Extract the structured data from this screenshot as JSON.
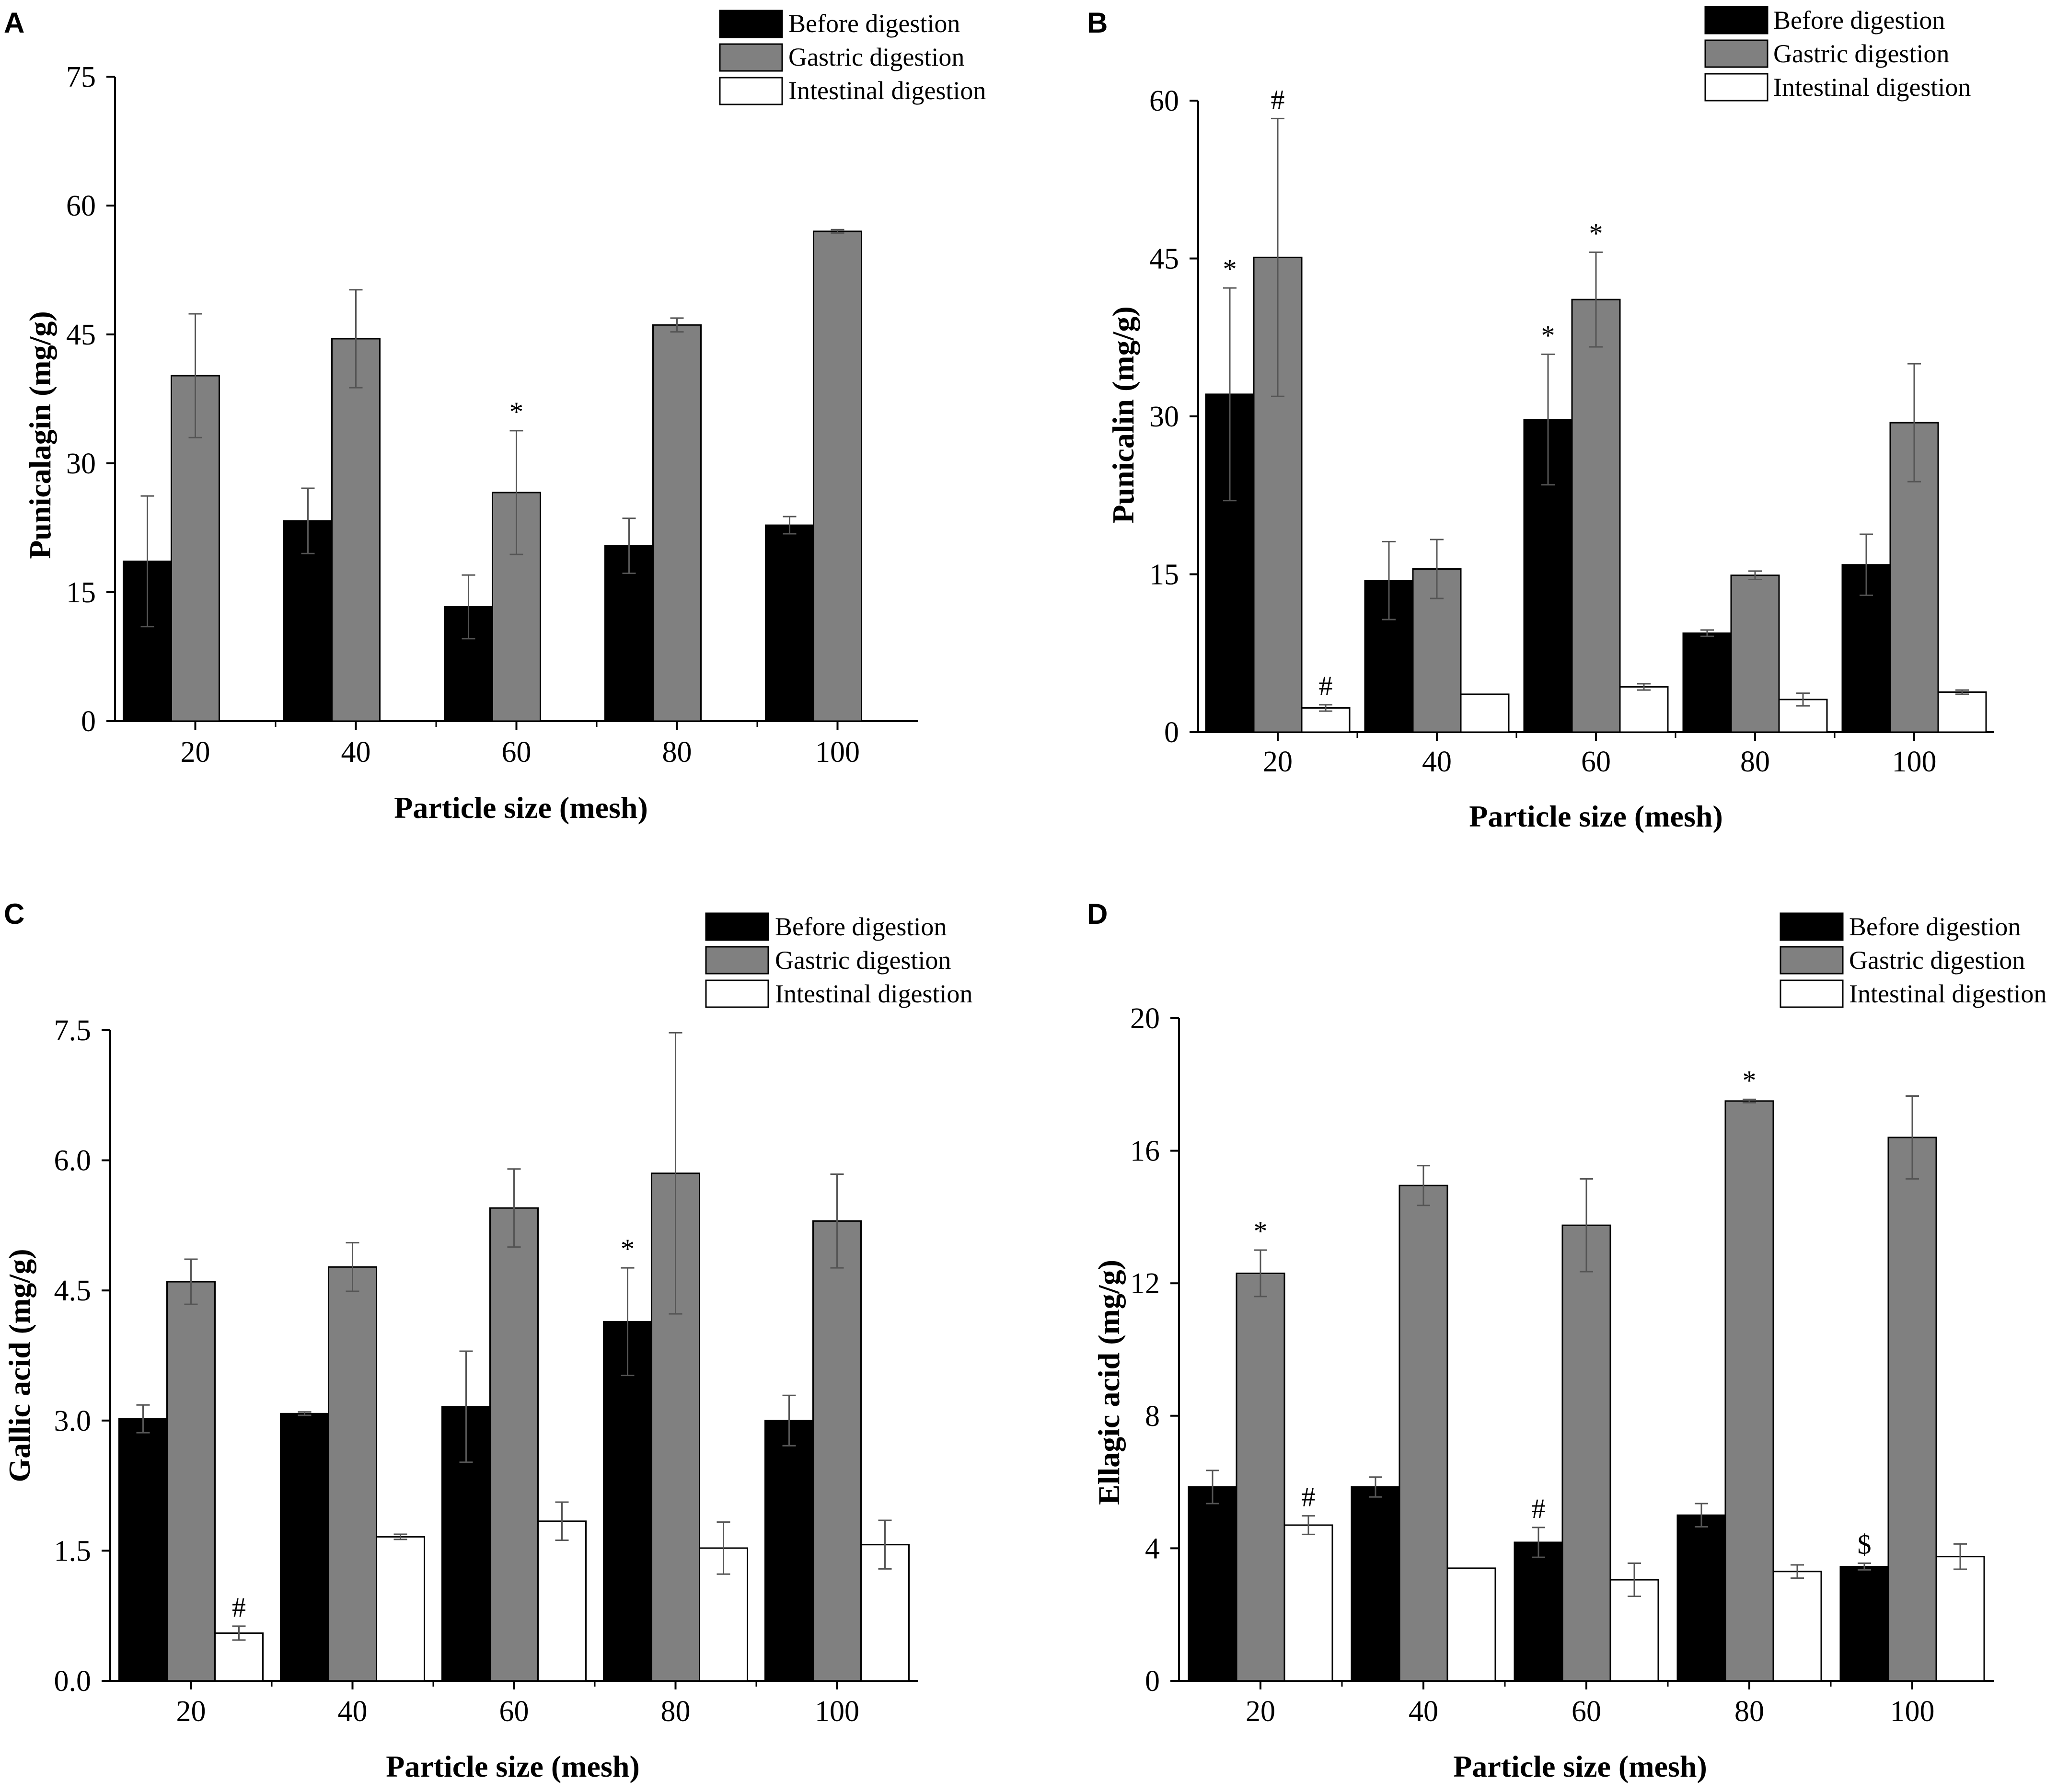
{
  "chart_data": [
    {
      "panel": "A",
      "type": "bar",
      "xlabel": "Particle size (mesh)",
      "ylabel": "Punicalagin (mg/g)",
      "ylim": [
        0,
        75
      ],
      "yticks": [
        0,
        15,
        30,
        45,
        60,
        75
      ],
      "ytick_labels": [
        "0",
        "15",
        "30",
        "45",
        "60",
        "75"
      ],
      "categories": [
        "20",
        "40",
        "60",
        "80",
        "100"
      ],
      "legend": [
        "Before digestion",
        "Gastric digestion",
        "Intestinal digestion"
      ],
      "legend_position": "top-right",
      "series": [
        {
          "name": "Before digestion",
          "color": "#000000",
          "values": [
            18.6,
            23.3,
            13.3,
            20.4,
            22.8
          ],
          "errors": [
            7.6,
            3.8,
            3.7,
            3.2,
            1.0
          ]
        },
        {
          "name": "Gastric digestion",
          "color": "#808080",
          "values": [
            40.2,
            44.5,
            26.6,
            46.1,
            57.0
          ],
          "errors": [
            7.2,
            5.7,
            7.2,
            0.8,
            0.2
          ]
        }
      ],
      "annotations": [
        {
          "text": "*",
          "series": 1,
          "category": 2
        }
      ]
    },
    {
      "panel": "B",
      "type": "bar",
      "xlabel": "Particle size (mesh)",
      "ylabel": "Punicalin (mg/g)",
      "ylim": [
        0,
        60
      ],
      "yticks": [
        0,
        15,
        30,
        45,
        60
      ],
      "ytick_labels": [
        "0",
        "15",
        "30",
        "45",
        "60"
      ],
      "categories": [
        "20",
        "40",
        "60",
        "80",
        "100"
      ],
      "legend": [
        "Before digestion",
        "Gastric digestion",
        "Intestinal digestion"
      ],
      "legend_position": "top-right",
      "series": [
        {
          "name": "Before digestion",
          "color": "#000000",
          "values": [
            32.1,
            14.4,
            29.7,
            9.4,
            15.9
          ],
          "errors": [
            10.1,
            3.7,
            6.2,
            0.3,
            2.9
          ]
        },
        {
          "name": "Gastric digestion",
          "color": "#808080",
          "values": [
            45.1,
            15.5,
            41.1,
            14.9,
            29.4
          ],
          "errors": [
            13.2,
            2.8,
            4.5,
            0.4,
            5.6
          ]
        },
        {
          "name": "Intestinal digestion",
          "color": "#ffffff",
          "values": [
            2.3,
            3.6,
            4.3,
            3.1,
            3.8
          ],
          "errors": [
            0.3,
            0.0,
            0.3,
            0.6,
            0.2
          ]
        }
      ],
      "annotations": [
        {
          "text": "*",
          "series": 0,
          "category": 0
        },
        {
          "text": "#",
          "series": 1,
          "category": 0
        },
        {
          "text": "#",
          "series": 2,
          "category": 0
        },
        {
          "text": "*",
          "series": 0,
          "category": 2
        },
        {
          "text": "*",
          "series": 1,
          "category": 2
        }
      ]
    },
    {
      "panel": "C",
      "type": "bar",
      "xlabel": "Particle size (mesh)",
      "ylabel": "Gallic acid (mg/g)",
      "ylim": [
        0,
        7.5
      ],
      "yticks": [
        0,
        1.5,
        3.0,
        4.5,
        6.0,
        7.5
      ],
      "ytick_labels": [
        "0.0",
        "1.5",
        "3.0",
        "4.5",
        "6.0",
        "7.5"
      ],
      "categories": [
        "20",
        "40",
        "60",
        "80",
        "100"
      ],
      "legend": [
        "Before digestion",
        "Gastric digestion",
        "Intestinal digestion"
      ],
      "legend_position": "top-right",
      "series": [
        {
          "name": "Before digestion",
          "color": "#000000",
          "values": [
            3.02,
            3.08,
            3.16,
            4.14,
            3.0
          ],
          "errors": [
            0.16,
            0.02,
            0.64,
            0.62,
            0.29
          ]
        },
        {
          "name": "Gastric digestion",
          "color": "#808080",
          "values": [
            4.6,
            4.77,
            5.45,
            5.85,
            5.3
          ],
          "errors": [
            0.26,
            0.28,
            0.45,
            1.62,
            0.54
          ]
        },
        {
          "name": "Intestinal digestion",
          "color": "#ffffff",
          "values": [
            0.55,
            1.66,
            1.84,
            1.53,
            1.57
          ],
          "errors": [
            0.08,
            0.03,
            0.22,
            0.3,
            0.28
          ]
        }
      ],
      "annotations": [
        {
          "text": "#",
          "series": 2,
          "category": 0
        },
        {
          "text": "*",
          "series": 0,
          "category": 3
        }
      ]
    },
    {
      "panel": "D",
      "type": "bar",
      "xlabel": "Particle size (mesh)",
      "ylabel": "Ellagic acid (mg/g)",
      "ylim": [
        0,
        20
      ],
      "yticks": [
        0,
        4,
        8,
        12,
        16,
        20
      ],
      "ytick_labels": [
        "0",
        "4",
        "8",
        "12",
        "16",
        "20"
      ],
      "categories": [
        "20",
        "40",
        "60",
        "80",
        "100"
      ],
      "legend": [
        "Before digestion",
        "Gastric digestion",
        "Intestinal digestion"
      ],
      "legend_position": "top-right",
      "series": [
        {
          "name": "Before digestion",
          "color": "#000000",
          "values": [
            5.85,
            5.85,
            4.18,
            5.0,
            3.45
          ],
          "errors": [
            0.5,
            0.3,
            0.45,
            0.35,
            0.1
          ]
        },
        {
          "name": "Gastric digestion",
          "color": "#808080",
          "values": [
            12.3,
            14.95,
            13.75,
            17.5,
            16.4
          ],
          "errors": [
            0.7,
            0.6,
            1.4,
            0.05,
            1.25
          ]
        },
        {
          "name": "Intestinal digestion",
          "color": "#ffffff",
          "values": [
            4.7,
            3.4,
            3.05,
            3.3,
            3.75
          ],
          "errors": [
            0.28,
            0.0,
            0.5,
            0.2,
            0.38
          ]
        }
      ],
      "annotations": [
        {
          "text": "*",
          "series": 1,
          "category": 0
        },
        {
          "text": "#",
          "series": 2,
          "category": 0
        },
        {
          "text": "#",
          "series": 0,
          "category": 2
        },
        {
          "text": "*",
          "series": 1,
          "category": 3
        },
        {
          "text": "$",
          "series": 0,
          "category": 4
        }
      ]
    }
  ]
}
